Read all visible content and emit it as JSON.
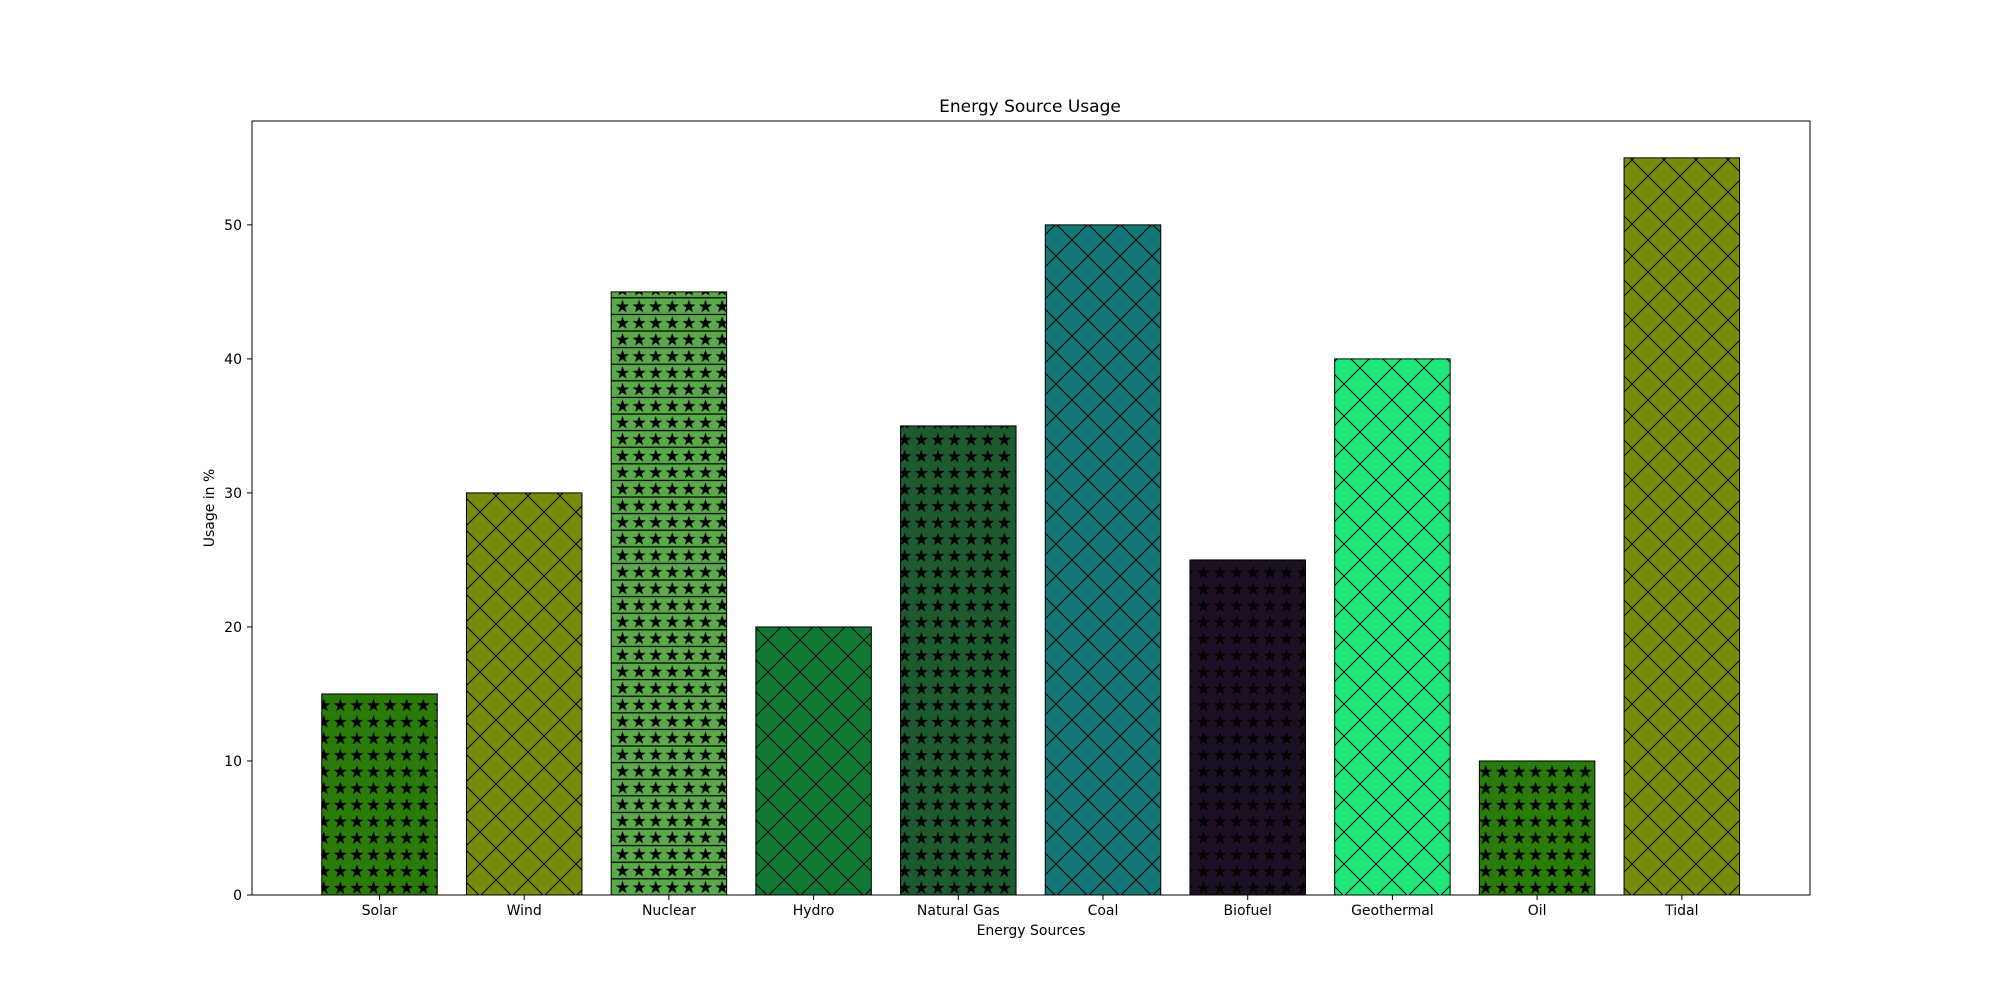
{
  "chart_data": {
    "type": "bar",
    "title": "Energy Source Usage",
    "xlabel": "Energy Sources",
    "ylabel": "Usage in %",
    "categories": [
      "Solar",
      "Wind",
      "Nuclear",
      "Hydro",
      "Natural Gas",
      "Coal",
      "Biofuel",
      "Geothermal",
      "Oil",
      "Tidal"
    ],
    "values": [
      15,
      30,
      45,
      20,
      35,
      50,
      25,
      40,
      10,
      55
    ],
    "colors": [
      "#2b7b0a",
      "#768c0c",
      "#5aa94a",
      "#127835",
      "#1e5a30",
      "#137777",
      "#1d0f24",
      "#1fe779",
      "#2b7b0a",
      "#768c0c"
    ],
    "hatches": [
      "stars",
      "cross",
      "stars-lines",
      "cross",
      "stars",
      "cross",
      "stars",
      "cross",
      "stars",
      "cross"
    ],
    "yticks": [
      0,
      10,
      20,
      30,
      40,
      50
    ],
    "ylim": [
      0,
      57.75
    ],
    "grid": false,
    "legend": "none"
  }
}
